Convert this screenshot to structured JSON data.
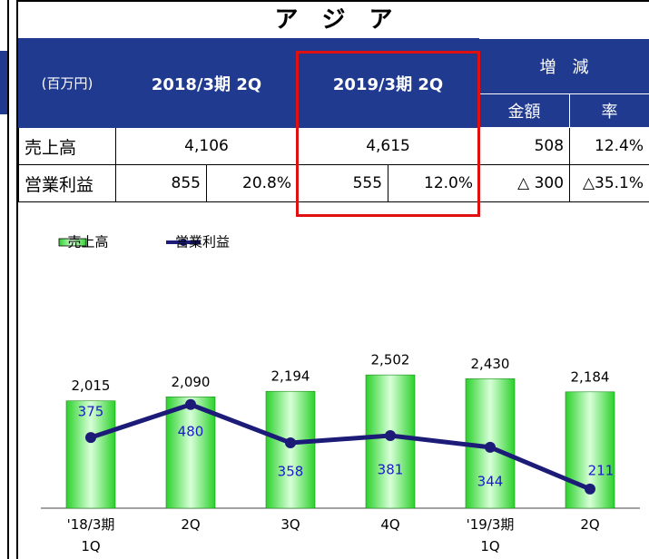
{
  "title": "ア　ジ　ア",
  "table": {
    "unit": "(百万円)",
    "col_headers": [
      "2018/3期 2Q",
      "2019/3期 2Q"
    ],
    "change_header": "増　減",
    "change_sub": [
      "金額",
      "率"
    ],
    "rows": [
      {
        "label": "売上高",
        "cells": [
          "4,106",
          "4,615",
          "508",
          "12.4%"
        ]
      },
      {
        "label": "営業利益",
        "cells": [
          "855",
          "20.8%",
          "555",
          "12.0%",
          "△ 300",
          "△35.1%"
        ]
      }
    ]
  },
  "chart_data": {
    "type": "bar_line",
    "categories": [
      "'18/3期\n1Q",
      "2Q",
      "3Q",
      "4Q",
      "'19/3期\n1Q",
      "2Q"
    ],
    "series": [
      {
        "name": "売上高",
        "type": "bar",
        "color": "#33dd33",
        "values": [
          2015,
          2090,
          2194,
          2502,
          2430,
          2184
        ],
        "value_labels": [
          "2,015",
          "2,090",
          "2,194",
          "2,502",
          "2,430",
          "2,184"
        ]
      },
      {
        "name": "営業利益",
        "type": "line",
        "axis": "y2",
        "color": "#1c1c78",
        "values": [
          375,
          480,
          358,
          381,
          344,
          211
        ]
      }
    ],
    "ylim": [
      0,
      4600
    ],
    "y2lim": [
      150,
      930
    ]
  }
}
